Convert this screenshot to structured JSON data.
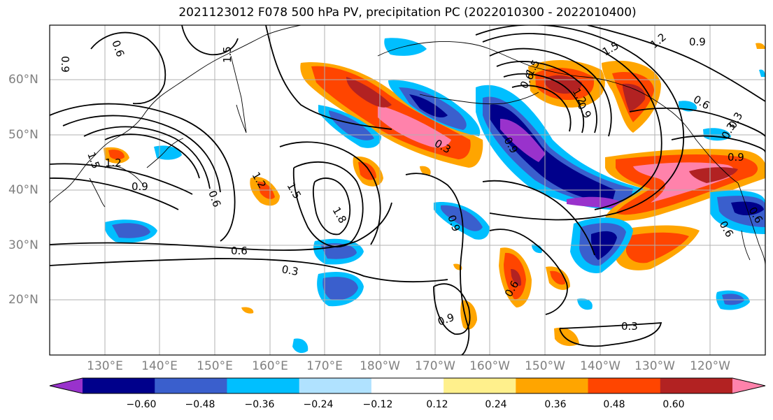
{
  "title": "2021123012 F078 500 hPa PV, precipitation PC (2022010300 - 2022010400)",
  "lat_labels": [
    "60°N",
    "50°N",
    "40°N",
    "30°N",
    "20°N"
  ],
  "lon_labels": [
    "130°E",
    "140°E",
    "150°E",
    "160°E",
    "170°E",
    "180°W",
    "170°W",
    "160°W",
    "150°W",
    "140°W",
    "130°W",
    "120°W"
  ],
  "contour_labels": [
    "0.6",
    "0.9",
    "1.2",
    "1.5",
    "1.8",
    "1.5",
    "1.2",
    "0.9",
    "0.6",
    "0.3",
    "0.6",
    "0.3",
    "0.9",
    "0.3",
    "0.9",
    "0.6",
    "1.5",
    "1.2",
    "0.9",
    "0.6",
    "1.5",
    "1.2",
    "0.9",
    "0.3",
    "0.6",
    "0.9",
    "1.5",
    "0.9",
    "0.6",
    "0.3",
    "0.6"
  ],
  "colorbar": {
    "ticks": [
      "−0.60",
      "−0.48",
      "−0.36",
      "−0.24",
      "−0.12",
      "0.12",
      "0.24",
      "0.36",
      "0.48",
      "0.60"
    ],
    "colors": [
      "#9932cc",
      "#00008b",
      "#3a5fcd",
      "#00bfff",
      "#b0e2ff",
      "#ffffff",
      "#fff08c",
      "#ffa500",
      "#ff4500",
      "#b22222",
      "#ff82ab"
    ]
  },
  "colors": {
    "purple": "#9932cc",
    "navy": "#00008b",
    "royal": "#3a5fcd",
    "cyan": "#00bfff",
    "lightblue": "#b0e2ff",
    "yellow": "#fff08c",
    "orange": "#ffa500",
    "redorange": "#ff4500",
    "firebrick": "#b22222",
    "pink": "#ff82ab"
  }
}
